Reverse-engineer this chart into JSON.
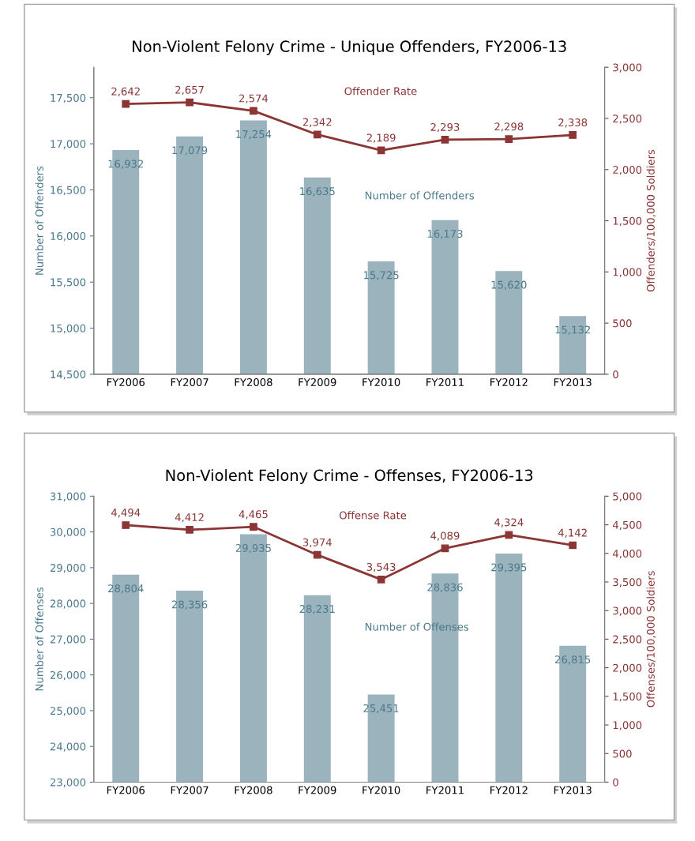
{
  "chart_data": [
    {
      "type": "bar",
      "title": "Non-Violent Felony Crime - Unique Offenders, FY2006-13",
      "ylabel": "Number of Offenders",
      "y2label": "Offenders/100,000 Soldiers",
      "categories": [
        "FY2006",
        "FY2007",
        "FY2008",
        "FY2009",
        "FY2010",
        "FY2011",
        "FY2012",
        "FY2013"
      ],
      "series": [
        {
          "name": "Number of Offenders",
          "color": "#9bb3bd",
          "values": [
            16932,
            17079,
            17254,
            16635,
            15725,
            16173,
            15620,
            15132
          ],
          "value_labels": [
            "16,932",
            "17,079",
            "17,254",
            "16,635",
            "15,725",
            "16,173",
            "15,620",
            "15,132"
          ]
        },
        {
          "name": "Offender Rate",
          "type": "line",
          "axis": "y2",
          "color": "#8b3535",
          "marker": "square",
          "values": [
            2642,
            2657,
            2574,
            2342,
            2189,
            2293,
            2298,
            2338
          ],
          "value_labels": [
            "2,642",
            "2,657",
            "2,574",
            "2,342",
            "2,189",
            "2,293",
            "2,298",
            "2,338"
          ]
        }
      ],
      "ylim": [
        14500,
        17830
      ],
      "yticks": [
        {
          "value": 14500,
          "label": "14,500"
        },
        {
          "value": 15000,
          "label": "15,000"
        },
        {
          "value": 15500,
          "label": "15,500"
        },
        {
          "value": 16000,
          "label": "16,000"
        },
        {
          "value": 16500,
          "label": "16,500"
        },
        {
          "value": 17000,
          "label": "17,000"
        },
        {
          "value": 17500,
          "label": "17,500"
        }
      ],
      "y2lim": [
        0,
        3000
      ],
      "y2ticks": [
        0,
        500,
        {
          "value": 1000,
          "label": "1,000"
        },
        {
          "value": 1500,
          "label": "1,500"
        },
        {
          "value": 2000,
          "label": "2,000"
        },
        {
          "value": 2500,
          "label": "2,500"
        },
        {
          "value": 3000,
          "label": "3,000"
        }
      ],
      "grid": false,
      "legend": false
    },
    {
      "type": "bar",
      "title": "Non-Violent Felony Crime - Offenses, FY2006-13",
      "ylabel": "Number of Offenses",
      "y2label": "Offenses/100,000 Soldiers",
      "categories": [
        "FY2006",
        "FY2007",
        "FY2008",
        "FY2009",
        "FY2010",
        "FY2011",
        "FY2012",
        "FY2013"
      ],
      "series": [
        {
          "name": "Number of Offenses",
          "color": "#9bb3bd",
          "values": [
            28804,
            28356,
            29935,
            28231,
            25451,
            28836,
            29395,
            26815
          ],
          "value_labels": [
            "28,804",
            "28,356",
            "29,935",
            "28,231",
            "25,451",
            "28,836",
            "29,395",
            "26,815"
          ]
        },
        {
          "name": "Offense Rate",
          "type": "line",
          "axis": "y2",
          "color": "#8b3535",
          "marker": "square",
          "values": [
            4494,
            4412,
            4465,
            3974,
            3543,
            4089,
            4324,
            4142
          ],
          "value_labels": [
            "4,494",
            "4,412",
            "4,465",
            "3,974",
            "3,543",
            "4,089",
            "4,324",
            "4,142"
          ]
        }
      ],
      "ylim": [
        23000,
        31000
      ],
      "yticks": [
        {
          "value": 23000,
          "label": "23,000"
        },
        {
          "value": 24000,
          "label": "24,000"
        },
        {
          "value": 25000,
          "label": "25,000"
        },
        {
          "value": 26000,
          "label": "26,000"
        },
        {
          "value": 27000,
          "label": "27,000"
        },
        {
          "value": 28000,
          "label": "28,000"
        },
        {
          "value": 29000,
          "label": "29,000"
        },
        {
          "value": 30000,
          "label": "30,000"
        },
        {
          "value": 31000,
          "label": "31,000"
        }
      ],
      "y2lim": [
        0,
        5000
      ],
      "y2ticks": [
        0,
        500,
        {
          "value": 1000,
          "label": "1,000"
        },
        {
          "value": 1500,
          "label": "1,500"
        },
        {
          "value": 2000,
          "label": "2,000"
        },
        {
          "value": 2500,
          "label": "2,500"
        },
        {
          "value": 3000,
          "label": "3,000"
        },
        {
          "value": 3500,
          "label": "3,500"
        },
        {
          "value": 4000,
          "label": "4,000"
        },
        {
          "value": 4500,
          "label": "4,500"
        },
        {
          "value": 5000,
          "label": "5,000"
        }
      ],
      "grid": false,
      "legend": false
    }
  ]
}
